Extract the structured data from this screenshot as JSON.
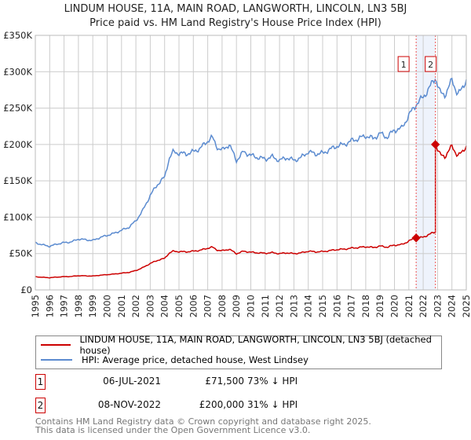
{
  "chart_data": {
    "type": "line",
    "title": "LINDUM HOUSE, 11A, MAIN ROAD, LANGWORTH, LINCOLN, LN3 5BJ",
    "subtitle": "Price paid vs. HM Land Registry's House Price Index (HPI)",
    "xlim": [
      1995,
      2025
    ],
    "ylim": [
      0,
      350000
    ],
    "yticks": [
      {
        "v": 0,
        "label": "£0"
      },
      {
        "v": 50000,
        "label": "£50K"
      },
      {
        "v": 100000,
        "label": "£100K"
      },
      {
        "v": 150000,
        "label": "£150K"
      },
      {
        "v": 200000,
        "label": "£200K"
      },
      {
        "v": 250000,
        "label": "£250K"
      },
      {
        "v": 300000,
        "label": "£300K"
      },
      {
        "v": 350000,
        "label": "£350K"
      }
    ],
    "xticks": [
      "1995",
      "1996",
      "1997",
      "1998",
      "1999",
      "2000",
      "2001",
      "2002",
      "2003",
      "2004",
      "2005",
      "2006",
      "2007",
      "2008",
      "2009",
      "2010",
      "2011",
      "2012",
      "2013",
      "2014",
      "2015",
      "2016",
      "2017",
      "2018",
      "2019",
      "2020",
      "2021",
      "2022",
      "2023",
      "2024",
      "2025"
    ],
    "grid": true,
    "series": [
      {
        "name": "HPI: Average price, detached house, West Lindsey",
        "color": "#5b8bd0",
        "x": [
          1995,
          1995.5,
          1996,
          1996.5,
          1997,
          1997.5,
          1998,
          1998.5,
          1999,
          1999.5,
          2000,
          2000.5,
          2001,
          2001.5,
          2002,
          2002.5,
          2003,
          2003.5,
          2004,
          2004.3,
          2004.6,
          2005,
          2005.5,
          2006,
          2006.5,
          2007,
          2007.3,
          2007.7,
          2008,
          2008.5,
          2009,
          2009.5,
          2010,
          2010.5,
          2011,
          2011.5,
          2012,
          2012.5,
          2013,
          2013.5,
          2014,
          2014.5,
          2015,
          2015.5,
          2016,
          2016.5,
          2017,
          2017.5,
          2018,
          2018.5,
          2019,
          2019.5,
          2020,
          2020.5,
          2021,
          2021.5,
          2022,
          2022.5,
          2022.85,
          2023.2,
          2023.5,
          2024,
          2024.4,
          2024.7,
          2025
        ],
        "y": [
          65000,
          62000,
          60000,
          63000,
          65000,
          66000,
          70000,
          69000,
          68000,
          72000,
          75000,
          78000,
          82000,
          86000,
          95000,
          110000,
          130000,
          145000,
          155000,
          180000,
          190000,
          188000,
          187000,
          190000,
          195000,
          205000,
          210000,
          195000,
          192000,
          200000,
          178000,
          190000,
          185000,
          182000,
          180000,
          183000,
          178000,
          182000,
          178000,
          182000,
          190000,
          187000,
          188000,
          193000,
          198000,
          200000,
          205000,
          208000,
          212000,
          208000,
          215000,
          210000,
          220000,
          222000,
          240000,
          255000,
          265000,
          280000,
          292000,
          270000,
          268000,
          288000,
          270000,
          275000,
          290000
        ]
      },
      {
        "name": "LINDUM HOUSE, 11A, MAIN ROAD, LANGWORTH, LINCOLN, LN3 5BJ (detached house)",
        "color": "#cc0000"
      }
    ],
    "sales": [
      {
        "id": "1",
        "x": 2021.51,
        "price": 71500,
        "date": "06-JUL-2021",
        "price_label": "£71,500",
        "hpi_delta": "73% ↓ HPI"
      },
      {
        "id": "2",
        "x": 2022.85,
        "price": 200000,
        "date": "08-NOV-2022",
        "price_label": "£200,000",
        "hpi_delta": "31% ↓ HPI"
      }
    ]
  },
  "legend": {
    "red": "LINDUM HOUSE, 11A, MAIN ROAD, LANGWORTH, LINCOLN, LN3 5BJ (detached house)",
    "blue": "HPI: Average price, detached house, West Lindsey"
  },
  "footer": {
    "line1": "Contains HM Land Registry data © Crown copyright and database right 2025.",
    "line2": "This data is licensed under the Open Government Licence v3.0."
  }
}
